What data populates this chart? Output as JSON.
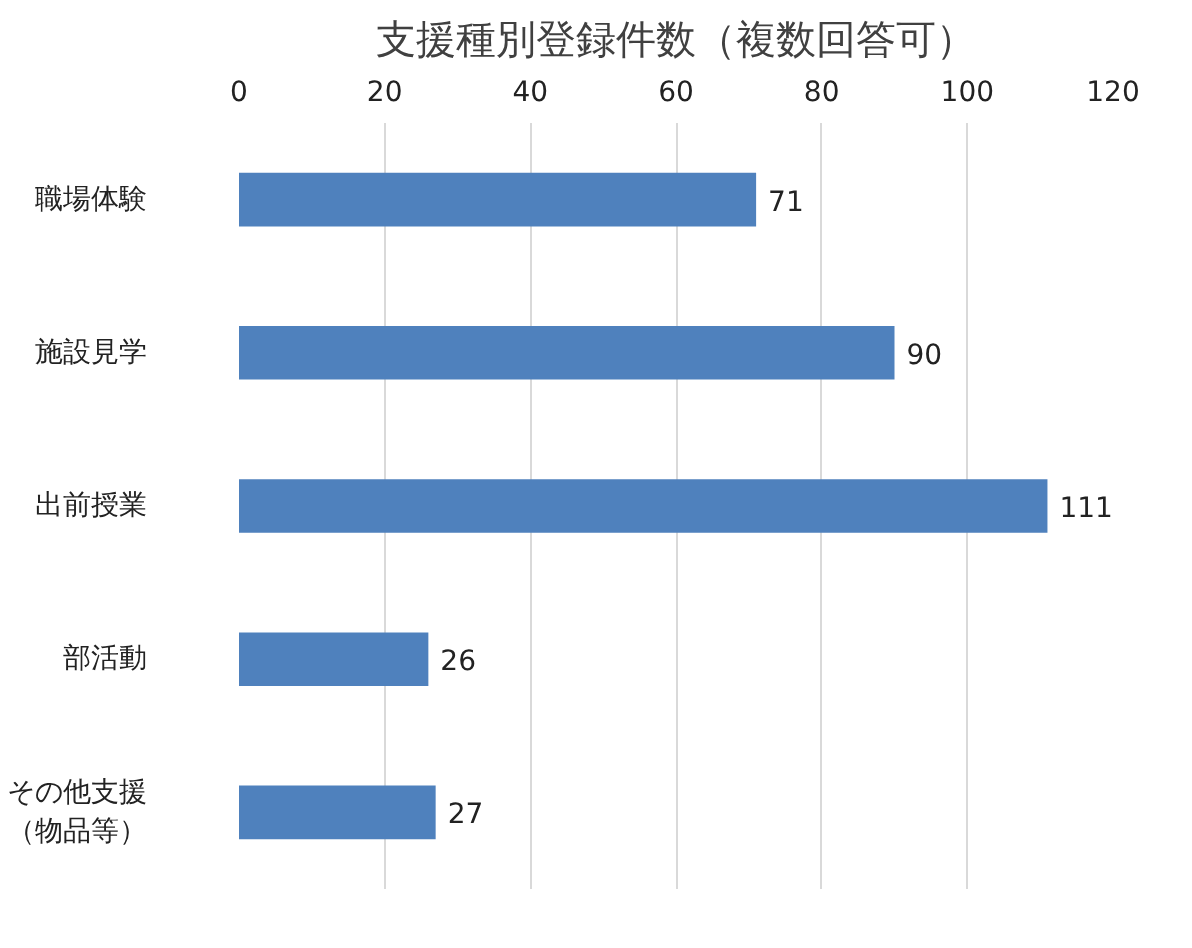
{
  "chart_data": {
    "type": "bar",
    "orientation": "horizontal",
    "title": "支援種別登録件数（複数回答可）",
    "categories": [
      "職場体験",
      "施設見学",
      "出前授業",
      "部活動",
      "その他支援（物品等）"
    ],
    "values": [
      71,
      90,
      111,
      26,
      27
    ],
    "color": "#4f81bd",
    "xlim": [
      0,
      120
    ],
    "xticks": [
      0,
      20,
      40,
      60,
      80,
      100,
      120
    ],
    "grid": "x",
    "data_labels": true
  }
}
